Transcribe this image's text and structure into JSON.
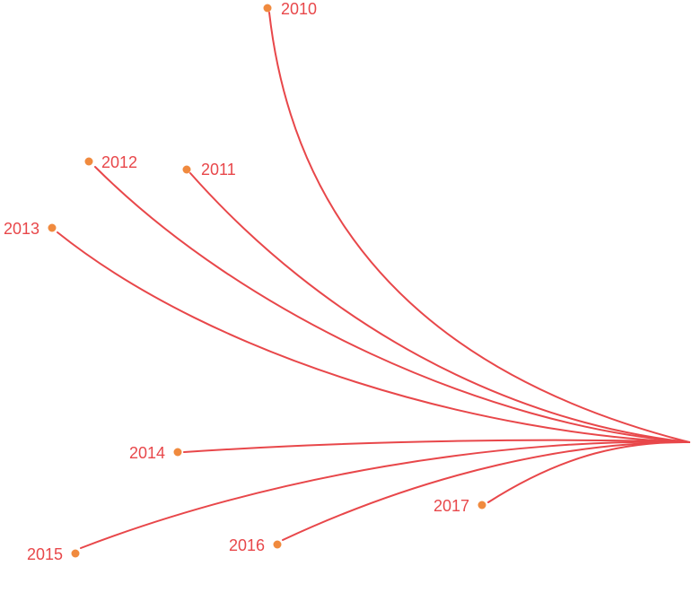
{
  "diagram": {
    "type": "radial-tree",
    "edge_color": "#e8474a",
    "node_color": "#f08a3e",
    "label_color": "#e8474a",
    "nodes": [
      {
        "id": "n2010",
        "label": "2010"
      },
      {
        "id": "n2011",
        "label": "2011"
      },
      {
        "id": "n2012",
        "label": "2012"
      },
      {
        "id": "n2013",
        "label": "2013"
      },
      {
        "id": "n2014",
        "label": "2014"
      },
      {
        "id": "n2015",
        "label": "2015"
      },
      {
        "id": "n2016",
        "label": "2016"
      },
      {
        "id": "n2017",
        "label": "2017"
      }
    ]
  }
}
